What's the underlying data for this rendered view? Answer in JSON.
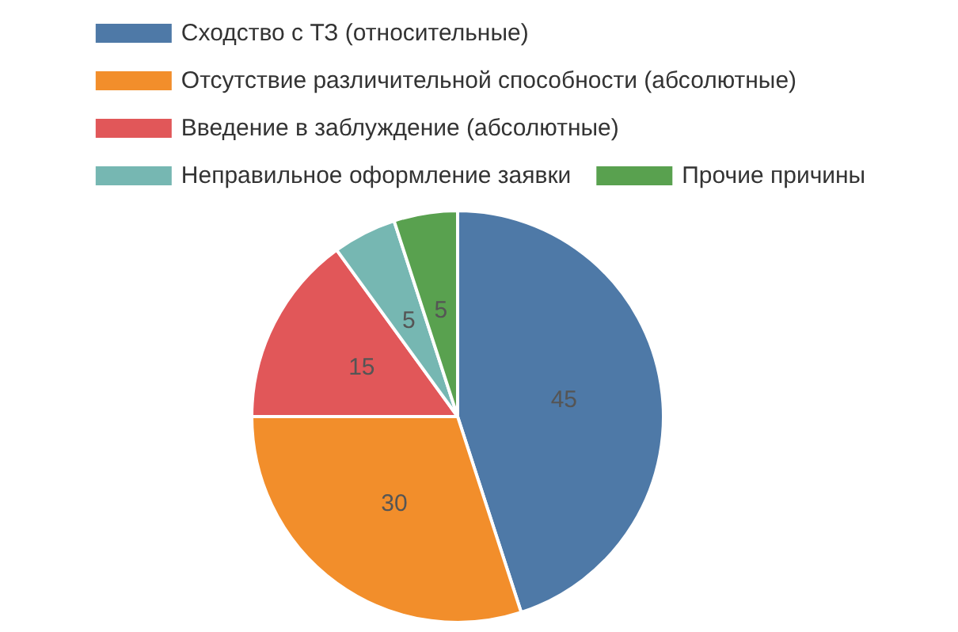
{
  "chart_data": {
    "type": "pie",
    "categories": [
      "Сходство с ТЗ (относительные)",
      "Отсутствие различительной способности (абсолютные)",
      "Введение в заблуждение (абсолютные)",
      "Неправильное оформление заявки",
      "Прочие причины"
    ],
    "values": [
      45,
      30,
      15,
      5,
      5
    ],
    "colors": [
      "#4e79a7",
      "#f28e2b",
      "#e15759",
      "#76b7b2",
      "#59a14f"
    ],
    "data_labels": true,
    "legend": "top"
  }
}
